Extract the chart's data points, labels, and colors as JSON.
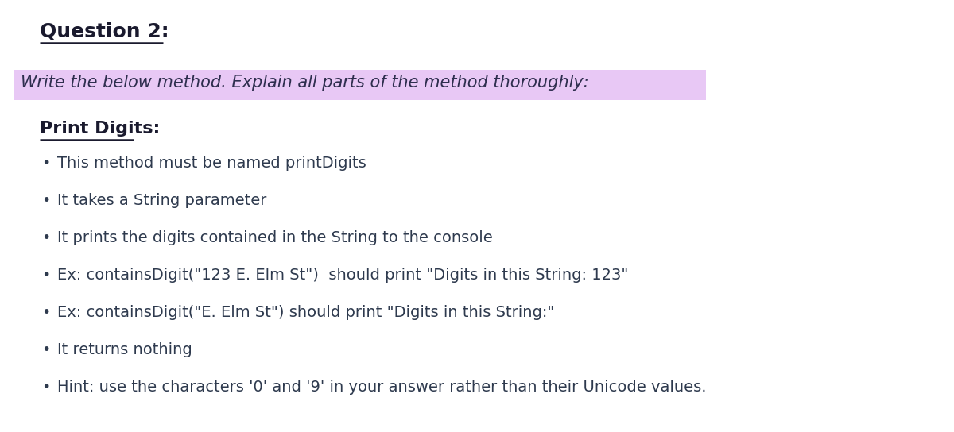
{
  "background_color": "#ffffff",
  "title": "Question 2:",
  "title_fontsize": 18,
  "title_color": "#1a1a2e",
  "highlight_text": "Write the below method. Explain all parts of the method thoroughly:",
  "highlight_bg": "#e8c8f5",
  "highlight_fontsize": 15,
  "highlight_color": "#2e2e4e",
  "section_title": "Print Digits:",
  "section_title_fontsize": 16,
  "section_title_color": "#1a1a2e",
  "bullet_points": [
    "This method must be named printDigits",
    "It takes a String parameter",
    "It prints the digits contained in the String to the console",
    "Ex: containsDigit(\"123 E. Elm St\")  should print \"Digits in this String: 123\"",
    "Ex: containsDigit(\"E. Elm St\") should print \"Digits in this String:\"",
    "It returns nothing",
    "Hint: use the characters '0' and '9' in your answer rather than their Unicode values."
  ],
  "bullet_fontsize": 14,
  "bullet_color": "#2e3a4e",
  "bullet_symbol": "•",
  "figwidth": 12.0,
  "figheight": 5.44,
  "dpi": 100
}
